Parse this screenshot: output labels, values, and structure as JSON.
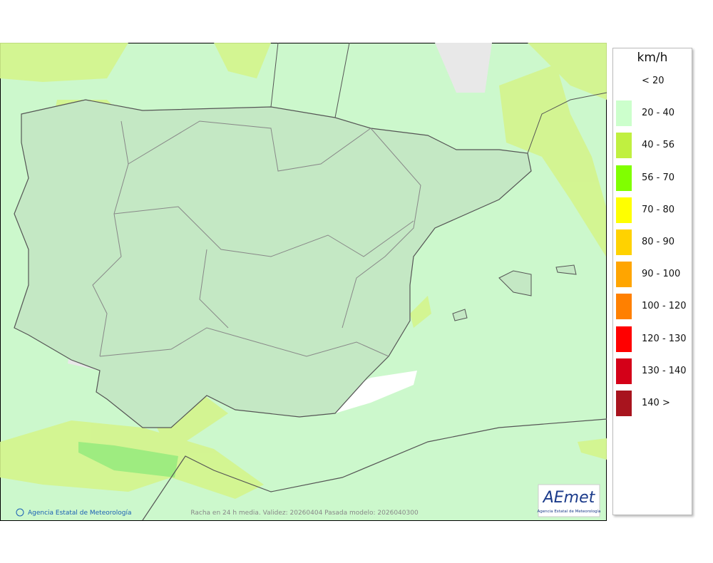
{
  "map": {
    "legend": {
      "title": "km/h",
      "items": [
        {
          "label": "< 20",
          "color": "#ffffff"
        },
        {
          "label": "20 - 40",
          "color": "#ccffcc"
        },
        {
          "label": "40 - 56",
          "color": "#c0f040"
        },
        {
          "label": "56 - 70",
          "color": "#80ff00"
        },
        {
          "label": "70 - 80",
          "color": "#ffff00"
        },
        {
          "label": "80 - 90",
          "color": "#ffd200"
        },
        {
          "label": "90 - 100",
          "color": "#ffa500"
        },
        {
          "label": "100 - 120",
          "color": "#ff8000"
        },
        {
          "label": "120 - 130",
          "color": "#ff0000"
        },
        {
          "label": "130 - 140",
          "color": "#d40018"
        },
        {
          "label": "140 >",
          "color": "#a8141e"
        }
      ]
    },
    "credit": "Agencia Estatal de Meteorología",
    "caption": "Racha en 24 h media. Validez: 20260404 Pasada modelo: 2026040300",
    "logo": {
      "name": "AEmet",
      "subtitle": "Agencia Estatal de Meteorología"
    }
  }
}
